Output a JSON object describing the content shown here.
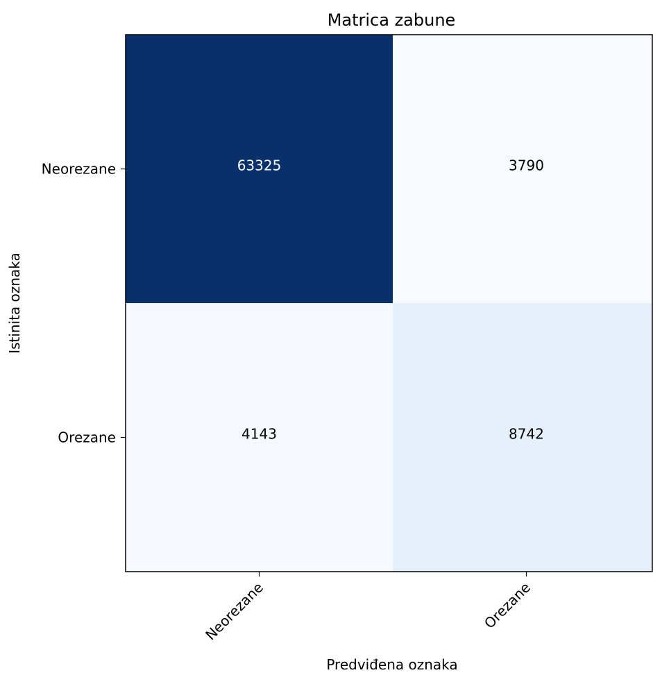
{
  "chart_data": {
    "type": "heatmap",
    "title": "Matrica zabune",
    "xlabel": "Predviđena oznaka",
    "ylabel": "Istinita oznaka",
    "x_tick_labels": [
      "Neorezane",
      "Orezane"
    ],
    "y_tick_labels": [
      "Neorezane",
      "Orezane"
    ],
    "values": [
      [
        63325,
        3790
      ],
      [
        4143,
        8742
      ]
    ],
    "colormap": "Blues",
    "color_low": "#f7fbff",
    "color_high": "#08306b",
    "text_color_dark": "#000000",
    "text_color_light": "#ffffff"
  }
}
